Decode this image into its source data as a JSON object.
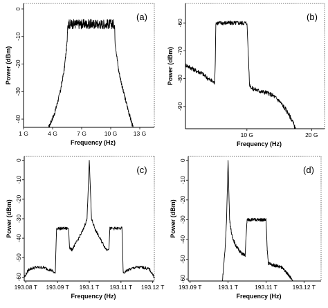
{
  "chart_data": [
    {
      "type": "line",
      "panel_label": "(a)",
      "xlabel": "Frequency (Hz)",
      "ylabel": "Power (dBm)",
      "xlim": [
        1,
        14.5
      ],
      "ylim": [
        -43,
        2
      ],
      "xticks": [
        1,
        4,
        7,
        10,
        13
      ],
      "xticklabels": [
        "1 G",
        "4 G",
        "7 G",
        "10 G",
        "13 G"
      ],
      "yticks": [
        0,
        -10,
        -20,
        -30,
        -40
      ],
      "yticklabels": [
        "0",
        "-10",
        "-20",
        "-30",
        "-40"
      ],
      "x_unit_note": "GHz",
      "series": [
        {
          "x": [
            3.6,
            4.2,
            4.8,
            5.2,
            5.5,
            5.55,
            5.6,
            6,
            7,
            8,
            9,
            10,
            10.35,
            10.4,
            10.45,
            10.8,
            11.3,
            11.9,
            12.3
          ],
          "y": [
            -43,
            -38,
            -30,
            -22,
            -12,
            -6,
            -5.5,
            -5.5,
            -5.5,
            -5.5,
            -5.5,
            -5.5,
            -5.5,
            -6,
            -12,
            -22,
            -30,
            -38,
            -43
          ]
        }
      ]
    },
    {
      "type": "line",
      "panel_label": "(b)",
      "xlabel": "Frequency (Hz)",
      "ylabel": "Power (dBm)",
      "xlim": [
        0.5,
        22
      ],
      "ylim": [
        -98,
        -53
      ],
      "xticks": [
        10,
        20
      ],
      "xticklabels": [
        "10 G",
        "20 G"
      ],
      "yticks": [
        -60,
        -70,
        -80,
        -90
      ],
      "yticklabels": [
        "-60",
        "-70",
        "-80",
        "-90"
      ],
      "x_unit_note": "GHz",
      "series": [
        {
          "x": [
            0.5,
            2,
            3,
            4,
            5,
            5.1,
            5.2,
            6,
            7,
            8,
            9,
            10,
            10.2,
            10.4,
            10.8,
            12,
            13,
            14,
            15,
            16,
            17,
            17.5
          ],
          "y": [
            -75,
            -77,
            -78,
            -80,
            -81.5,
            -75,
            -60,
            -60,
            -60,
            -60,
            -60,
            -60,
            -70,
            -82,
            -83.5,
            -84.5,
            -85,
            -86,
            -88,
            -91,
            -95,
            -98
          ]
        }
      ]
    },
    {
      "type": "line",
      "panel_label": "(c)",
      "xlabel": "Frequency (Hz)",
      "ylabel": "Power (dBm)",
      "xlim": [
        193.0795,
        193.1205
      ],
      "ylim": [
        -62,
        2
      ],
      "xticks": [
        193.08,
        193.09,
        193.1,
        193.11,
        193.12
      ],
      "xticklabels": [
        "193.08 T",
        "193.09 T",
        "193.1 T",
        "193.11 T",
        "193.12 T"
      ],
      "yticks": [
        0,
        -10,
        -20,
        -30,
        -40,
        -50,
        -60
      ],
      "yticklabels": [
        "0",
        "-10",
        "-20",
        "-30",
        "-40",
        "-50",
        "-60"
      ],
      "x_unit_note": "THz",
      "series": [
        {
          "x": [
            193.0795,
            193.081,
            193.083,
            193.0855,
            193.088,
            193.0893,
            193.0895,
            193.0897,
            193.092,
            193.0935,
            193.0938,
            193.0945,
            193.096,
            193.098,
            193.0993,
            193.1,
            193.1007,
            193.102,
            193.104,
            193.1055,
            193.1062,
            193.1065,
            193.108,
            193.1103,
            193.1105,
            193.1107,
            193.112,
            193.1145,
            193.117,
            193.119,
            193.1205
          ],
          "y": [
            -60,
            -56,
            -55,
            -55,
            -56.5,
            -58,
            -45,
            -35,
            -35,
            -35,
            -45,
            -46,
            -42,
            -36,
            -30,
            0,
            -30,
            -36,
            -42,
            -46,
            -45,
            -35,
            -35,
            -35,
            -45,
            -58,
            -56.5,
            -55,
            -55,
            -56,
            -60
          ]
        }
      ]
    },
    {
      "type": "line",
      "panel_label": "(d)",
      "xlabel": "Frequency (Hz)",
      "ylabel": "Power (dBm)",
      "xlim": [
        193.0895,
        193.1245
      ],
      "ylim": [
        -61,
        2
      ],
      "xticks": [
        193.09,
        193.1,
        193.11,
        193.12
      ],
      "xticklabels": [
        "193.09 T",
        "193.1 T",
        "193.11 T",
        "193.12 T"
      ],
      "yticks": [
        0,
        -10,
        -20,
        -30,
        -40,
        -50,
        -60
      ],
      "yticklabels": [
        "0",
        "-10",
        "-20",
        "-30",
        "-40",
        "-50",
        "-60"
      ],
      "x_unit_note": "THz",
      "series": [
        {
          "x": [
            193.0985,
            193.0992,
            193.0996,
            193.1,
            193.1004,
            193.101,
            193.102,
            193.1035,
            193.1045,
            193.1047,
            193.105,
            193.11,
            193.1103,
            193.1106,
            193.112,
            193.114,
            193.116,
            193.117
          ],
          "y": [
            -61,
            -45,
            -30,
            0,
            -30,
            -38,
            -43,
            -47,
            -48,
            -40,
            -30,
            -30,
            -45,
            -52,
            -53,
            -54,
            -58,
            -61
          ]
        }
      ]
    }
  ]
}
